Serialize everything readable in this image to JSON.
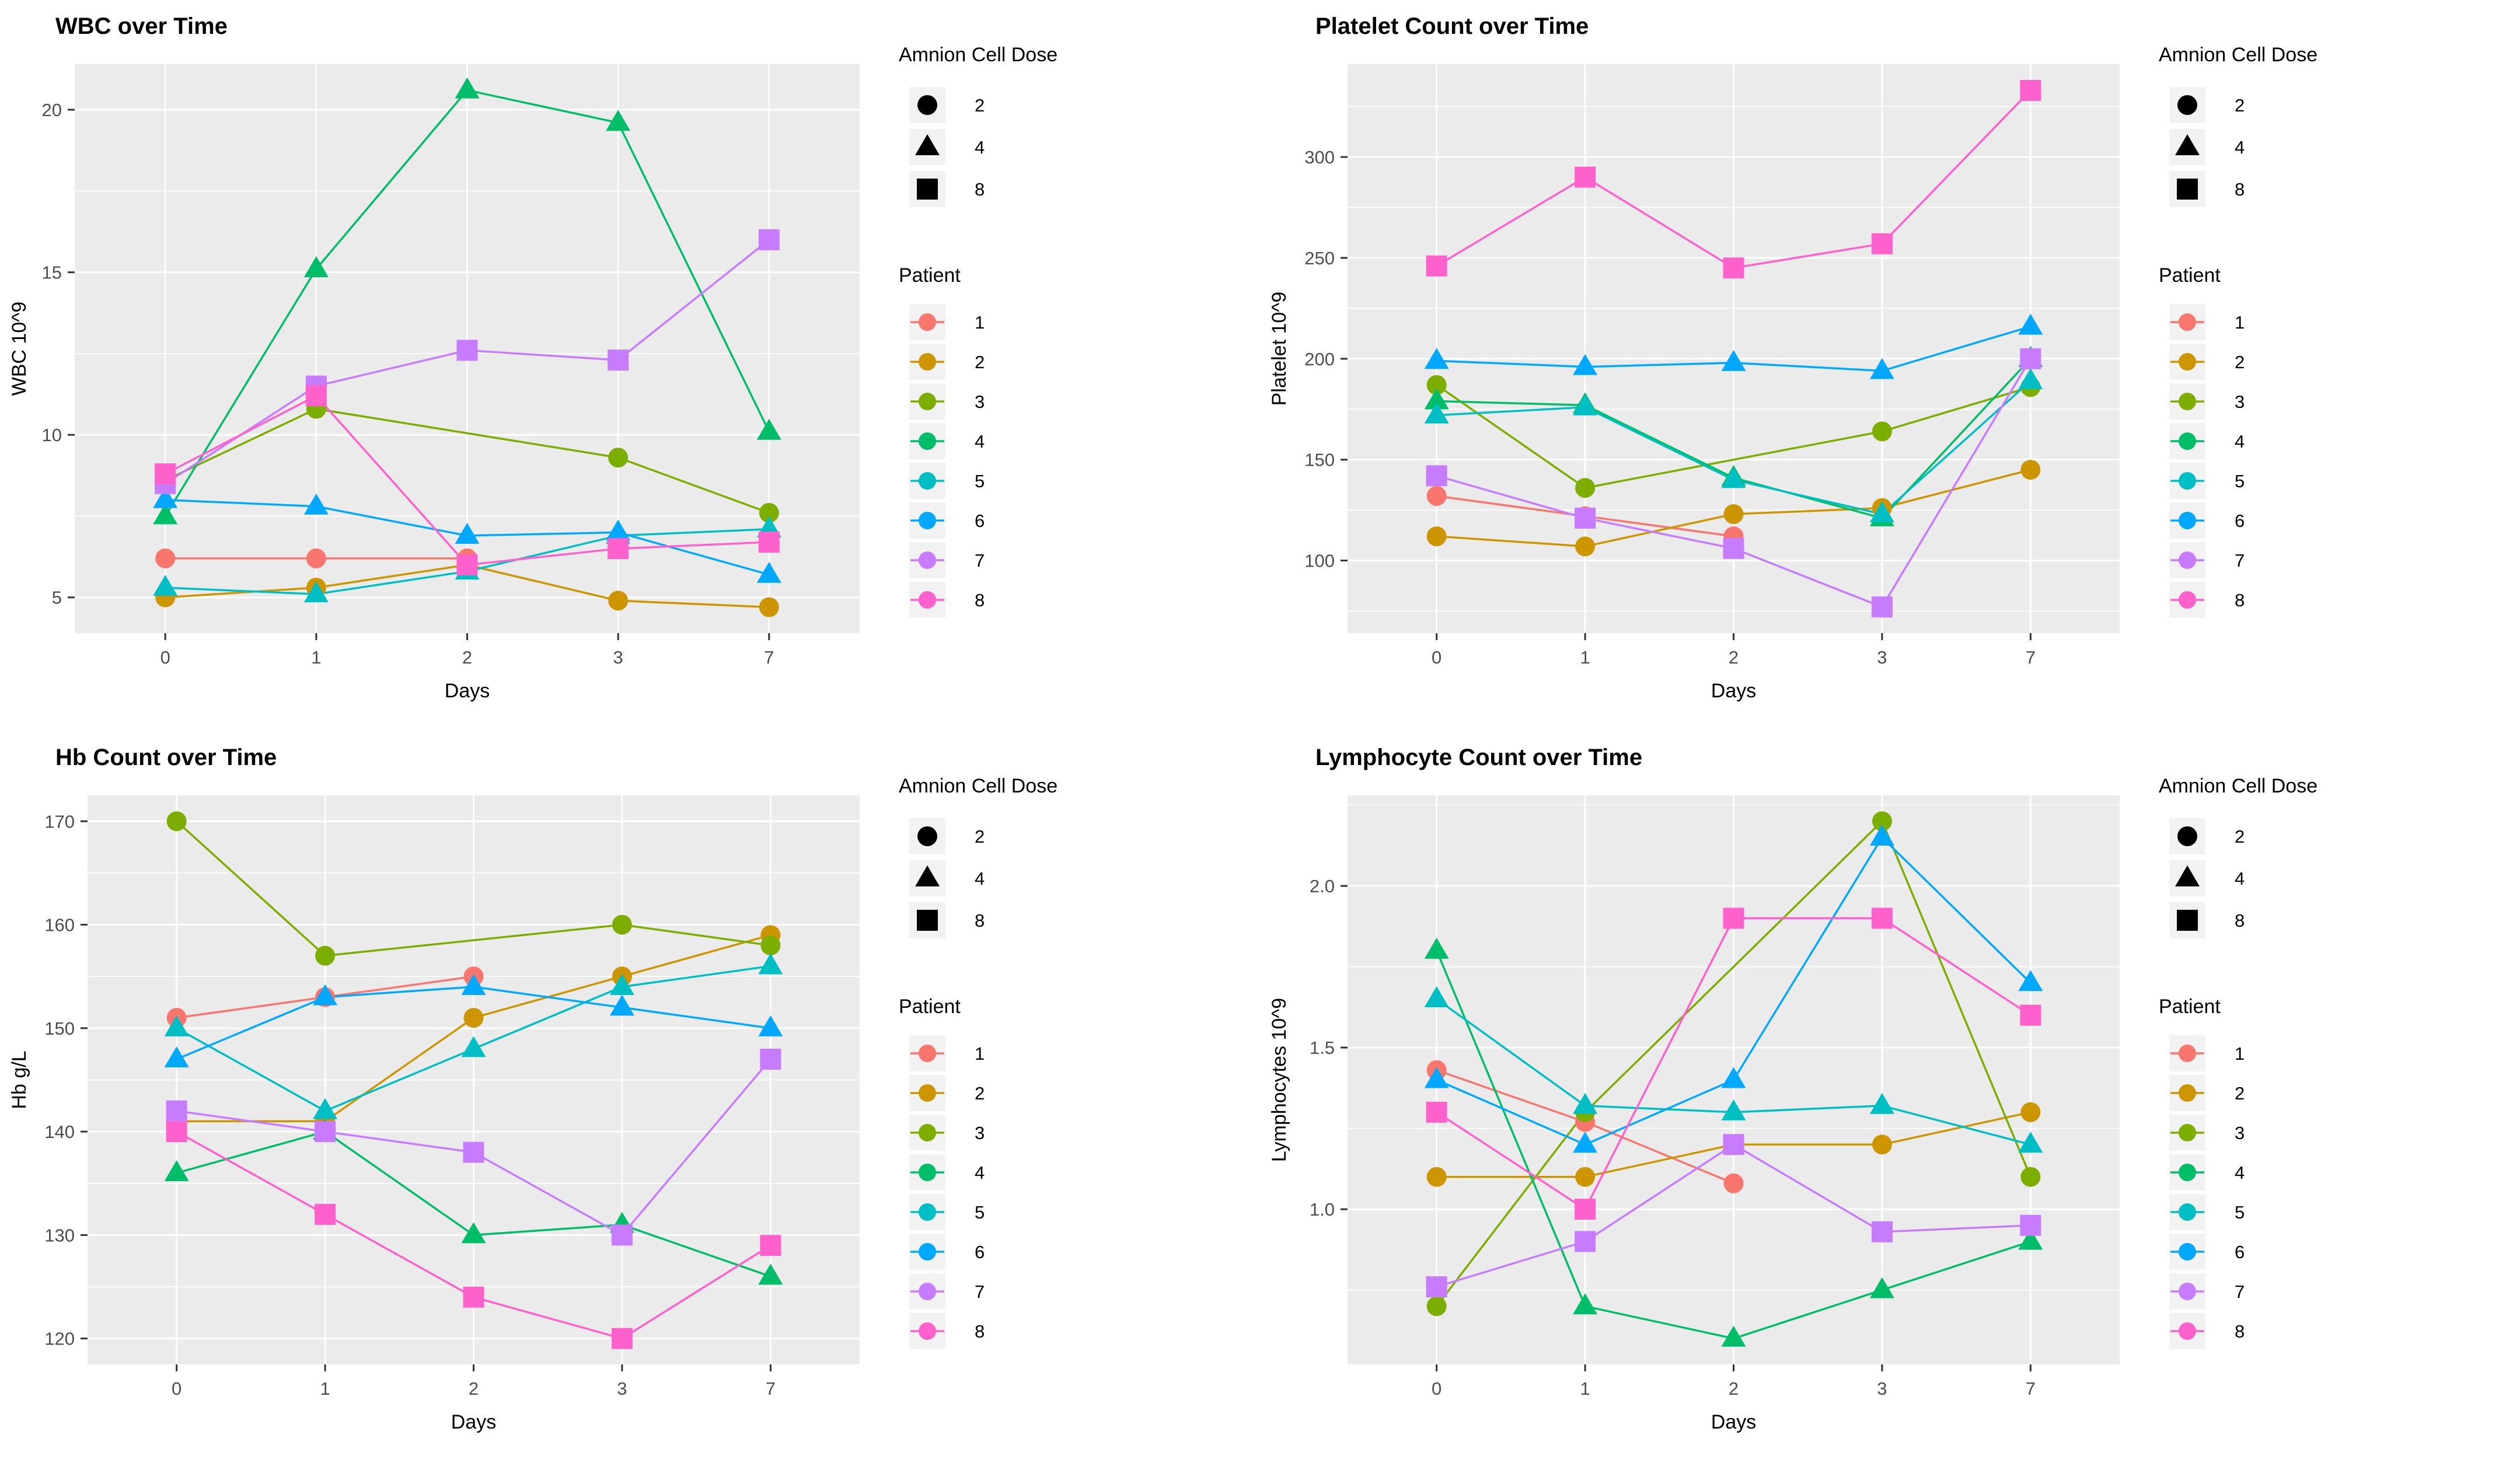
{
  "page": {
    "background": "#ffffff"
  },
  "style": {
    "panel_bg": "#EBEBEB",
    "grid_color": "#FFFFFF",
    "tick_text_color": "#4D4D4D",
    "axis_title_color": "#000000",
    "title_color": "#000000",
    "tick_mark_color": "#333333",
    "legend_key_bg": "#F2F2F2",
    "legend_shape_color": "#000000"
  },
  "palette": {
    "patient_colors": [
      "#F8766D",
      "#CD9600",
      "#7CAE00",
      "#00BE67",
      "#00BFC4",
      "#00A9FF",
      "#C77CFF",
      "#FF61CC"
    ]
  },
  "legend": {
    "dose_title": "Amnion Cell Dose",
    "dose_items": [
      {
        "label": "2",
        "shape": "circle"
      },
      {
        "label": "4",
        "shape": "triangle"
      },
      {
        "label": "8",
        "shape": "square"
      }
    ],
    "patient_title": "Patient",
    "patient_items": [
      {
        "label": "1",
        "color": "#F8766D"
      },
      {
        "label": "2",
        "color": "#CD9600"
      },
      {
        "label": "3",
        "color": "#7CAE00"
      },
      {
        "label": "4",
        "color": "#00BE67"
      },
      {
        "label": "5",
        "color": "#00BFC4"
      },
      {
        "label": "6",
        "color": "#00A9FF"
      },
      {
        "label": "7",
        "color": "#C77CFF"
      },
      {
        "label": "8",
        "color": "#FF61CC"
      }
    ]
  },
  "chart_data": [
    {
      "type": "line",
      "title": "WBC over Time",
      "xlabel": "Days",
      "ylabel": "WBC  10^9",
      "categories": [
        "0",
        "1",
        "2",
        "3",
        "7"
      ],
      "ylim": [
        3.9,
        21.4
      ],
      "yticks": [
        5,
        10,
        15,
        20
      ],
      "ytick_labels": [
        "5",
        "10",
        "15",
        "20"
      ],
      "yminor": [
        7.5,
        12.5,
        17.5
      ],
      "legend_position": "right",
      "grid": true,
      "series": [
        {
          "name": "1",
          "patient": 1,
          "dose": 2,
          "shape": "circle",
          "color": "#F8766D",
          "values": [
            6.2,
            6.2,
            6.2,
            null,
            null
          ]
        },
        {
          "name": "2",
          "patient": 2,
          "dose": 2,
          "shape": "circle",
          "color": "#CD9600",
          "values": [
            5.0,
            5.3,
            6.0,
            4.9,
            4.7
          ]
        },
        {
          "name": "3",
          "patient": 3,
          "dose": 2,
          "shape": "circle",
          "color": "#7CAE00",
          "values": [
            8.6,
            10.8,
            null,
            9.3,
            7.6
          ]
        },
        {
          "name": "4",
          "patient": 4,
          "dose": 4,
          "shape": "triangle",
          "color": "#00BE67",
          "values": [
            7.5,
            15.1,
            20.6,
            19.6,
            10.1
          ]
        },
        {
          "name": "5",
          "patient": 5,
          "dose": 4,
          "shape": "triangle",
          "color": "#00BFC4",
          "values": [
            5.3,
            5.1,
            5.8,
            6.9,
            7.1
          ]
        },
        {
          "name": "6",
          "patient": 6,
          "dose": 4,
          "shape": "triangle",
          "color": "#00A9FF",
          "values": [
            8.0,
            7.8,
            6.9,
            7.0,
            5.7
          ]
        },
        {
          "name": "7",
          "patient": 7,
          "dose": 8,
          "shape": "square",
          "color": "#C77CFF",
          "values": [
            8.5,
            11.5,
            12.6,
            12.3,
            16.0
          ]
        },
        {
          "name": "8",
          "patient": 8,
          "dose": 8,
          "shape": "square",
          "color": "#FF61CC",
          "values": [
            8.8,
            11.2,
            6.0,
            6.5,
            6.7
          ]
        }
      ]
    },
    {
      "type": "line",
      "title": "Platelet Count over Time",
      "xlabel": "Days",
      "ylabel": "Platelet  10^9",
      "categories": [
        "0",
        "1",
        "2",
        "3",
        "7"
      ],
      "ylim": [
        64,
        346
      ],
      "yticks": [
        100,
        150,
        200,
        250,
        300
      ],
      "ytick_labels": [
        "100",
        "150",
        "200",
        "250",
        "300"
      ],
      "yminor": [
        75,
        125,
        175,
        225,
        275,
        325
      ],
      "legend_position": "right",
      "grid": true,
      "series": [
        {
          "name": "1",
          "patient": 1,
          "dose": 2,
          "shape": "circle",
          "color": "#F8766D",
          "values": [
            132,
            122,
            112,
            null,
            null
          ]
        },
        {
          "name": "2",
          "patient": 2,
          "dose": 2,
          "shape": "circle",
          "color": "#CD9600",
          "values": [
            112,
            107,
            123,
            126,
            145
          ]
        },
        {
          "name": "3",
          "patient": 3,
          "dose": 2,
          "shape": "circle",
          "color": "#7CAE00",
          "values": [
            187,
            136,
            null,
            164,
            186
          ]
        },
        {
          "name": "4",
          "patient": 4,
          "dose": 4,
          "shape": "triangle",
          "color": "#00BE67",
          "values": [
            179,
            177,
            141,
            121,
            200
          ]
        },
        {
          "name": "5",
          "patient": 5,
          "dose": 4,
          "shape": "triangle",
          "color": "#00BFC4",
          "values": [
            172,
            176,
            140,
            123,
            189
          ]
        },
        {
          "name": "6",
          "patient": 6,
          "dose": 4,
          "shape": "triangle",
          "color": "#00A9FF",
          "values": [
            199,
            196,
            198,
            194,
            216
          ]
        },
        {
          "name": "7",
          "patient": 7,
          "dose": 8,
          "shape": "square",
          "color": "#C77CFF",
          "values": [
            142,
            121,
            106,
            77,
            200
          ]
        },
        {
          "name": "8",
          "patient": 8,
          "dose": 8,
          "shape": "square",
          "color": "#FF61CC",
          "values": [
            246,
            290,
            245,
            257,
            333
          ]
        }
      ]
    },
    {
      "type": "line",
      "title": "Hb Count over Time",
      "xlabel": "Days",
      "ylabel": "Hb g/L",
      "categories": [
        "0",
        "1",
        "2",
        "3",
        "7"
      ],
      "ylim": [
        117.5,
        172.5
      ],
      "yticks": [
        120,
        130,
        140,
        150,
        160,
        170
      ],
      "ytick_labels": [
        "120",
        "130",
        "140",
        "150",
        "160",
        "170"
      ],
      "yminor": [
        125,
        135,
        145,
        155,
        165
      ],
      "legend_position": "right",
      "grid": true,
      "series": [
        {
          "name": "1",
          "patient": 1,
          "dose": 2,
          "shape": "circle",
          "color": "#F8766D",
          "values": [
            151,
            153,
            155,
            null,
            null
          ]
        },
        {
          "name": "2",
          "patient": 2,
          "dose": 2,
          "shape": "circle",
          "color": "#CD9600",
          "values": [
            141,
            141,
            151,
            155,
            159
          ]
        },
        {
          "name": "3",
          "patient": 3,
          "dose": 2,
          "shape": "circle",
          "color": "#7CAE00",
          "values": [
            170,
            157,
            null,
            160,
            158
          ]
        },
        {
          "name": "4",
          "patient": 4,
          "dose": 4,
          "shape": "triangle",
          "color": "#00BE67",
          "values": [
            136,
            140,
            130,
            131,
            126
          ]
        },
        {
          "name": "5",
          "patient": 5,
          "dose": 4,
          "shape": "triangle",
          "color": "#00BFC4",
          "values": [
            150,
            142,
            148,
            154,
            156
          ]
        },
        {
          "name": "6",
          "patient": 6,
          "dose": 4,
          "shape": "triangle",
          "color": "#00A9FF",
          "values": [
            147,
            153,
            154,
            152,
            150
          ]
        },
        {
          "name": "7",
          "patient": 7,
          "dose": 8,
          "shape": "square",
          "color": "#C77CFF",
          "values": [
            142,
            140,
            138,
            130,
            147
          ]
        },
        {
          "name": "8",
          "patient": 8,
          "dose": 8,
          "shape": "square",
          "color": "#FF61CC",
          "values": [
            140,
            132,
            124,
            120,
            129
          ]
        }
      ]
    },
    {
      "type": "line",
      "title": "Lymphocyte Count over Time",
      "xlabel": "Days",
      "ylabel": "Lymphocytes  10^9",
      "categories": [
        "0",
        "1",
        "2",
        "3",
        "7"
      ],
      "ylim": [
        0.52,
        2.28
      ],
      "yticks": [
        1.0,
        1.5,
        2.0
      ],
      "ytick_labels": [
        "1.0",
        "1.5",
        "2.0"
      ],
      "yminor": [
        0.75,
        1.25,
        1.75,
        2.25
      ],
      "legend_position": "right",
      "grid": true,
      "series": [
        {
          "name": "1",
          "patient": 1,
          "dose": 2,
          "shape": "circle",
          "color": "#F8766D",
          "values": [
            1.43,
            1.27,
            1.08,
            null,
            null
          ]
        },
        {
          "name": "2",
          "patient": 2,
          "dose": 2,
          "shape": "circle",
          "color": "#CD9600",
          "values": [
            1.1,
            1.1,
            1.2,
            1.2,
            1.3
          ]
        },
        {
          "name": "3",
          "patient": 3,
          "dose": 2,
          "shape": "circle",
          "color": "#7CAE00",
          "values": [
            0.7,
            1.3,
            null,
            2.2,
            1.1
          ]
        },
        {
          "name": "4",
          "patient": 4,
          "dose": 4,
          "shape": "triangle",
          "color": "#00BE67",
          "values": [
            1.8,
            0.7,
            0.6,
            0.75,
            0.9
          ]
        },
        {
          "name": "5",
          "patient": 5,
          "dose": 4,
          "shape": "triangle",
          "color": "#00BFC4",
          "values": [
            1.65,
            1.32,
            1.3,
            1.32,
            1.2
          ]
        },
        {
          "name": "6",
          "patient": 6,
          "dose": 4,
          "shape": "triangle",
          "color": "#00A9FF",
          "values": [
            1.4,
            1.2,
            1.4,
            2.15,
            1.7
          ]
        },
        {
          "name": "7",
          "patient": 7,
          "dose": 8,
          "shape": "square",
          "color": "#C77CFF",
          "values": [
            0.76,
            0.9,
            1.2,
            0.93,
            0.95
          ]
        },
        {
          "name": "8",
          "patient": 8,
          "dose": 8,
          "shape": "square",
          "color": "#FF61CC",
          "values": [
            1.3,
            1.0,
            1.9,
            1.9,
            1.6
          ]
        }
      ]
    }
  ]
}
